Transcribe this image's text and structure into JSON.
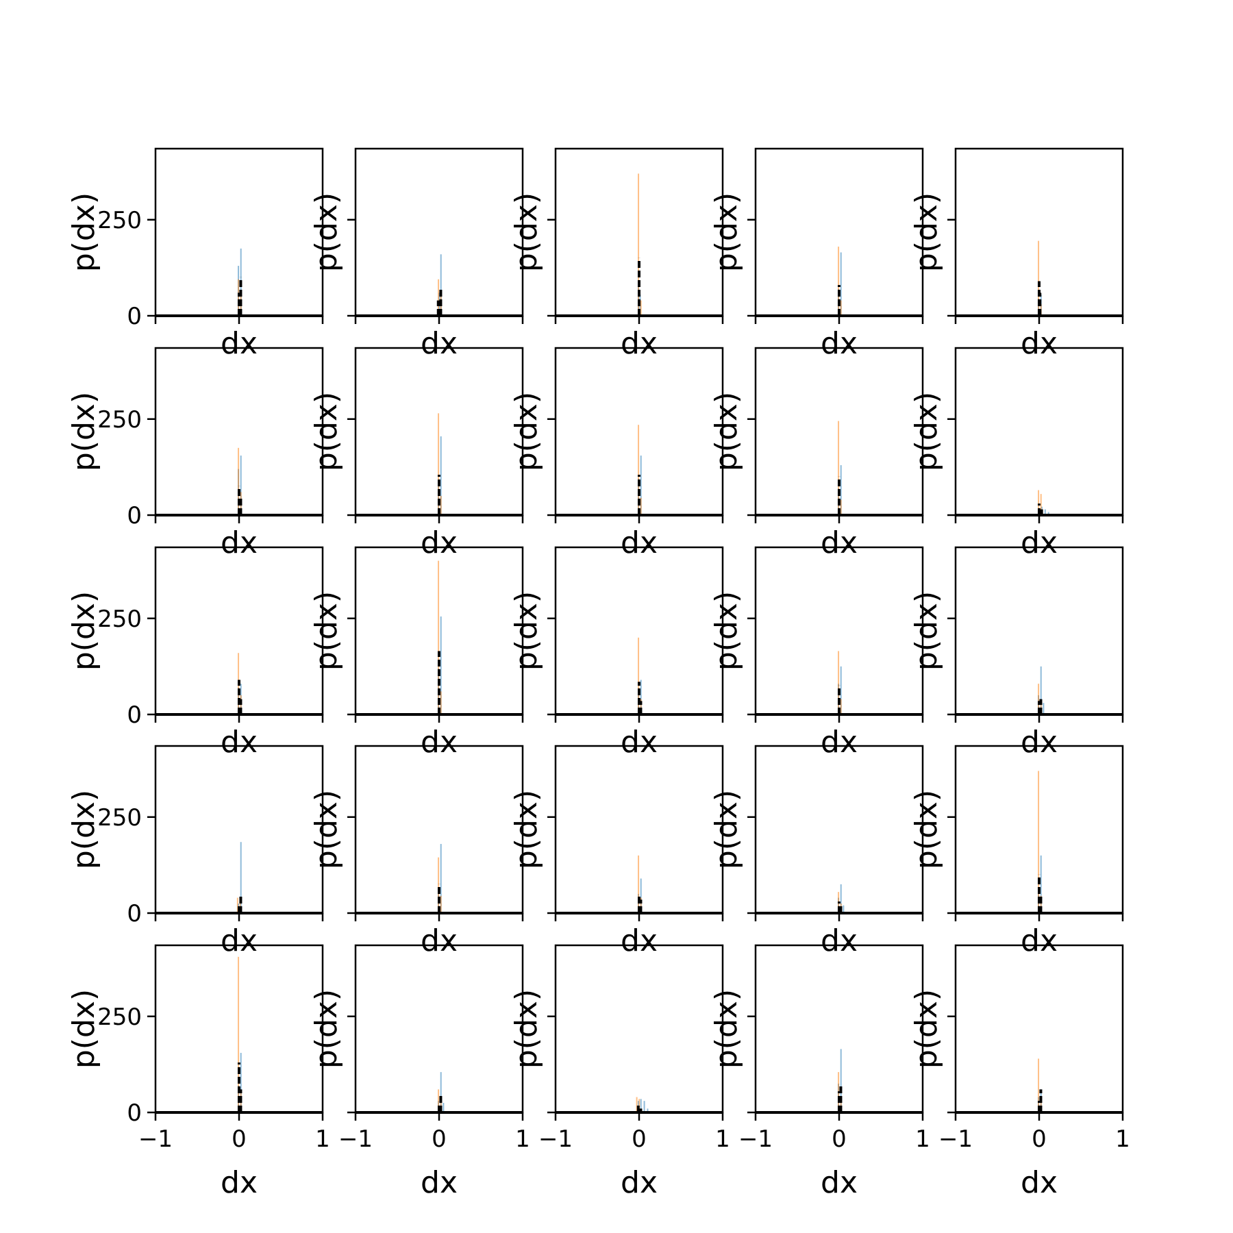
{
  "figure": {
    "rows": 5,
    "cols": 5,
    "colors": {
      "blue": "#1f77b4",
      "orange": "#ff7f0e",
      "black": "#000000",
      "blue_alpha": 0.5,
      "orange_alpha": 0.5
    }
  },
  "chart_data": {
    "type": "bar",
    "description_free": true,
    "xlabel": "dx",
    "ylabel": "p(dx)",
    "xlim": [
      -1,
      1
    ],
    "ylim": [
      0,
      435
    ],
    "xticks": [
      -1,
      0,
      1
    ],
    "xtick_labels": [
      "−1",
      "0",
      "1"
    ],
    "yticks": [
      0,
      250
    ],
    "ytick_labels": [
      "0",
      "250"
    ],
    "panels": [
      {
        "blue": [
          [
            -0.01,
            130
          ],
          [
            0.02,
            175
          ]
        ],
        "orange": [
          [
            -0.01,
            95
          ],
          [
            0.02,
            60
          ]
        ],
        "black": [
          [
            0.0,
            60
          ],
          [
            0.02,
            100
          ]
        ]
      },
      {
        "blue": [
          [
            0.0,
            60
          ],
          [
            0.02,
            160
          ]
        ],
        "orange": [
          [
            -0.01,
            95
          ],
          [
            0.02,
            55
          ]
        ],
        "black": [
          [
            -0.01,
            40
          ],
          [
            0.02,
            70
          ]
        ]
      },
      {
        "blue": [
          [
            -0.01,
            75
          ],
          [
            0.01,
            55
          ]
        ],
        "orange": [
          [
            -0.01,
            370
          ],
          [
            0.02,
            40
          ]
        ],
        "black": [
          [
            0.0,
            150
          ]
        ]
      },
      {
        "blue": [
          [
            -0.01,
            70
          ],
          [
            0.02,
            165
          ]
        ],
        "orange": [
          [
            -0.01,
            180
          ],
          [
            0.02,
            40
          ]
        ],
        "black": [
          [
            0.0,
            80
          ]
        ]
      },
      {
        "blue": [
          [
            -0.01,
            45
          ],
          [
            0.02,
            55
          ]
        ],
        "orange": [
          [
            -0.01,
            195
          ],
          [
            0.02,
            30
          ]
        ],
        "black": [
          [
            0.0,
            90
          ],
          [
            0.01,
            60
          ]
        ]
      },
      {
        "blue": [
          [
            -0.01,
            120
          ],
          [
            0.02,
            155
          ]
        ],
        "orange": [
          [
            -0.01,
            175
          ],
          [
            0.02,
            60
          ]
        ],
        "black": [
          [
            0.0,
            75
          ],
          [
            0.02,
            50
          ]
        ]
      },
      {
        "blue": [
          [
            -0.01,
            80
          ],
          [
            0.02,
            205
          ]
        ],
        "orange": [
          [
            -0.01,
            265
          ],
          [
            0.02,
            50
          ]
        ],
        "black": [
          [
            0.0,
            105
          ]
        ]
      },
      {
        "blue": [
          [
            -0.01,
            95
          ],
          [
            0.02,
            155
          ]
        ],
        "orange": [
          [
            -0.01,
            235
          ],
          [
            0.02,
            45
          ]
        ],
        "black": [
          [
            0.0,
            105
          ]
        ]
      },
      {
        "blue": [
          [
            -0.01,
            70
          ],
          [
            0.02,
            130
          ]
        ],
        "orange": [
          [
            -0.01,
            245
          ],
          [
            0.02,
            40
          ]
        ],
        "black": [
          [
            0.0,
            100
          ]
        ]
      },
      {
        "blue": [
          [
            0.03,
            22
          ],
          [
            0.07,
            15
          ],
          [
            0.11,
            8
          ]
        ],
        "orange": [
          [
            -0.01,
            65
          ],
          [
            0.02,
            55
          ]
        ],
        "black": [
          [
            0.0,
            30
          ],
          [
            0.03,
            15
          ]
        ]
      },
      {
        "blue": [
          [
            -0.01,
            70
          ],
          [
            0.02,
            80
          ]
        ],
        "orange": [
          [
            -0.01,
            160
          ],
          [
            0.02,
            50
          ]
        ],
        "black": [
          [
            0.0,
            90
          ],
          [
            0.02,
            40
          ]
        ]
      },
      {
        "blue": [
          [
            -0.01,
            120
          ],
          [
            0.02,
            255
          ]
        ],
        "orange": [
          [
            -0.01,
            400
          ],
          [
            0.02,
            60
          ]
        ],
        "black": [
          [
            0.0,
            165
          ]
        ]
      },
      {
        "blue": [
          [
            -0.01,
            60
          ],
          [
            0.02,
            90
          ]
        ],
        "orange": [
          [
            -0.01,
            200
          ],
          [
            0.02,
            40
          ]
        ],
        "black": [
          [
            0.0,
            85
          ],
          [
            0.02,
            35
          ]
        ]
      },
      {
        "blue": [
          [
            -0.01,
            80
          ],
          [
            0.02,
            125
          ]
        ],
        "orange": [
          [
            -0.01,
            165
          ],
          [
            0.02,
            40
          ]
        ],
        "black": [
          [
            0.0,
            75
          ]
        ]
      },
      {
        "blue": [
          [
            -0.01,
            50
          ],
          [
            0.02,
            125
          ],
          [
            0.05,
            30
          ]
        ],
        "orange": [
          [
            -0.01,
            80
          ],
          [
            0.02,
            35
          ]
        ],
        "black": [
          [
            0.0,
            35
          ],
          [
            0.02,
            40
          ]
        ]
      },
      {
        "blue": [
          [
            -0.01,
            25
          ],
          [
            0.02,
            185
          ]
        ],
        "orange": [
          [
            -0.02,
            40
          ],
          [
            0.01,
            35
          ]
        ],
        "black": [
          [
            0.0,
            20
          ],
          [
            0.02,
            50
          ]
        ]
      },
      {
        "blue": [
          [
            -0.01,
            60
          ],
          [
            0.02,
            180
          ]
        ],
        "orange": [
          [
            -0.01,
            145
          ],
          [
            0.02,
            45
          ]
        ],
        "black": [
          [
            0.0,
            75
          ]
        ]
      },
      {
        "blue": [
          [
            -0.01,
            50
          ],
          [
            0.02,
            90
          ]
        ],
        "orange": [
          [
            -0.01,
            150
          ],
          [
            0.02,
            40
          ]
        ],
        "black": [
          [
            0.0,
            50
          ],
          [
            0.02,
            35
          ]
        ]
      },
      {
        "blue": [
          [
            -0.01,
            40
          ],
          [
            0.02,
            75
          ],
          [
            0.05,
            20
          ]
        ],
        "orange": [
          [
            -0.01,
            55
          ],
          [
            0.02,
            25
          ]
        ],
        "black": [
          [
            0.0,
            30
          ],
          [
            0.02,
            25
          ]
        ]
      },
      {
        "blue": [
          [
            -0.01,
            65
          ],
          [
            0.02,
            150
          ]
        ],
        "orange": [
          [
            -0.01,
            370
          ],
          [
            0.02,
            45
          ]
        ],
        "black": [
          [
            0.0,
            100
          ],
          [
            0.02,
            50
          ]
        ]
      },
      {
        "blue": [
          [
            -0.01,
            70
          ],
          [
            0.02,
            155
          ]
        ],
        "orange": [
          [
            -0.01,
            405
          ],
          [
            0.02,
            50
          ]
        ],
        "black": [
          [
            0.0,
            130
          ],
          [
            0.02,
            60
          ]
        ]
      },
      {
        "blue": [
          [
            -0.01,
            30
          ],
          [
            0.02,
            105
          ],
          [
            0.05,
            25
          ]
        ],
        "orange": [
          [
            -0.01,
            60
          ],
          [
            0.02,
            30
          ]
        ],
        "black": [
          [
            0.0,
            25
          ],
          [
            0.02,
            45
          ]
        ]
      },
      {
        "blue": [
          [
            -0.01,
            30
          ],
          [
            0.02,
            35
          ],
          [
            0.06,
            30
          ],
          [
            0.1,
            10
          ]
        ],
        "orange": [
          [
            -0.03,
            40
          ],
          [
            0.0,
            35
          ]
        ],
        "black": [
          [
            -0.01,
            20
          ],
          [
            0.02,
            10
          ]
        ]
      },
      {
        "blue": [
          [
            -0.01,
            75
          ],
          [
            0.02,
            165
          ]
        ],
        "orange": [
          [
            -0.01,
            105
          ],
          [
            0.02,
            40
          ]
        ],
        "black": [
          [
            0.0,
            55
          ],
          [
            0.02,
            70
          ]
        ]
      },
      {
        "blue": [
          [
            -0.01,
            40
          ],
          [
            0.02,
            60
          ]
        ],
        "orange": [
          [
            -0.01,
            140
          ],
          [
            0.02,
            30
          ]
        ],
        "black": [
          [
            0.0,
            30
          ],
          [
            0.02,
            60
          ]
        ]
      }
    ]
  }
}
